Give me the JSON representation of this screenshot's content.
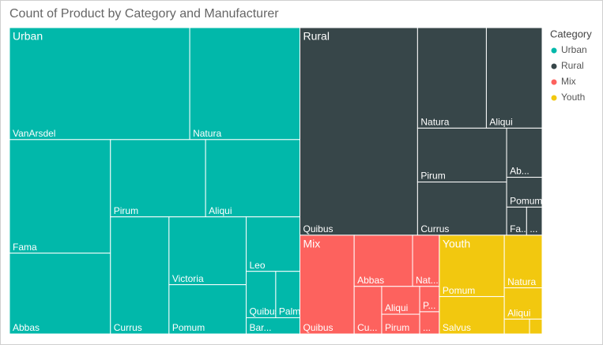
{
  "chart_data": {
    "type": "treemap",
    "title": "Count of Product by Category and Manufacturer",
    "legend_title": "Category",
    "legend": "right",
    "series": [
      {
        "name": "Urban",
        "color": "#01B8AA",
        "categories": [
          "VanArsdel",
          "Natura",
          "Fama",
          "Abbas",
          "Pirum",
          "Aliqui",
          "Currus",
          "Victoria",
          "Pomum",
          "Leo",
          "Quibus",
          "Palma",
          "Bar..."
        ],
        "values": [
          324,
          198,
          184,
          131,
          118,
          117,
          110,
          84,
          61,
          47,
          22,
          18,
          14
        ]
      },
      {
        "name": "Rural",
        "color": "#374649",
        "categories": [
          "Quibus",
          "Natura",
          "Aliqui",
          "Pirum",
          "Currus",
          "Ab...",
          "Pomum",
          "Fa...",
          "..."
        ],
        "values": [
          392,
          111,
          90,
          77,
          76,
          28,
          17,
          9,
          7
        ]
      },
      {
        "name": "Mix",
        "color": "#FD625E",
        "categories": [
          "Quibus",
          "Abbas",
          "Nat...",
          "Cu...",
          "Aliqui",
          "Pirum",
          "P...",
          "..."
        ],
        "values": [
          86,
          48,
          22,
          21,
          17,
          12,
          8,
          7
        ]
      },
      {
        "name": "Youth",
        "color": "#F2C80F",
        "categories": [
          "Pomum",
          "Salvus",
          "Natura",
          "Aliqui",
          null,
          null
        ],
        "values": [
          64,
          39,
          32,
          19,
          6,
          3
        ]
      }
    ]
  }
}
